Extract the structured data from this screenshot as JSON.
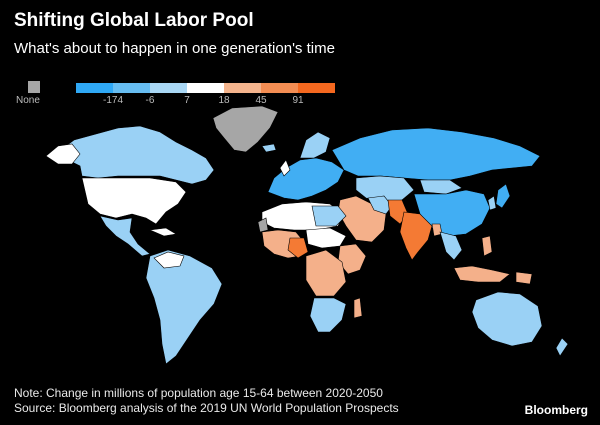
{
  "title": "Shifting Global Labor Pool",
  "subtitle": "What's about to happen in one generation's time",
  "legend": {
    "none_label": "None",
    "none_color": "#a6a6a6",
    "ramp_colors": [
      "#2fa8f5",
      "#67bdf1",
      "#a9d7f4",
      "#ffffff",
      "#f4b48d",
      "#f38d53",
      "#f4681f"
    ],
    "ticks": [
      "-174",
      "-6",
      "7",
      "18",
      "45",
      "91"
    ]
  },
  "map": {
    "description_colors": {
      "decline_strong": "#41aef3",
      "decline": "#9ad1f5",
      "flat": "#ffffff",
      "growth": "#f4b08a",
      "growth_strong": "#f47a34",
      "none": "#a6a6a6"
    }
  },
  "note": "Note: Change in millions of population age 15-64 between 2020-2050",
  "source": "Source: Bloomberg analysis of the 2019 UN World Population Prospects",
  "brand": "Bloomberg"
}
